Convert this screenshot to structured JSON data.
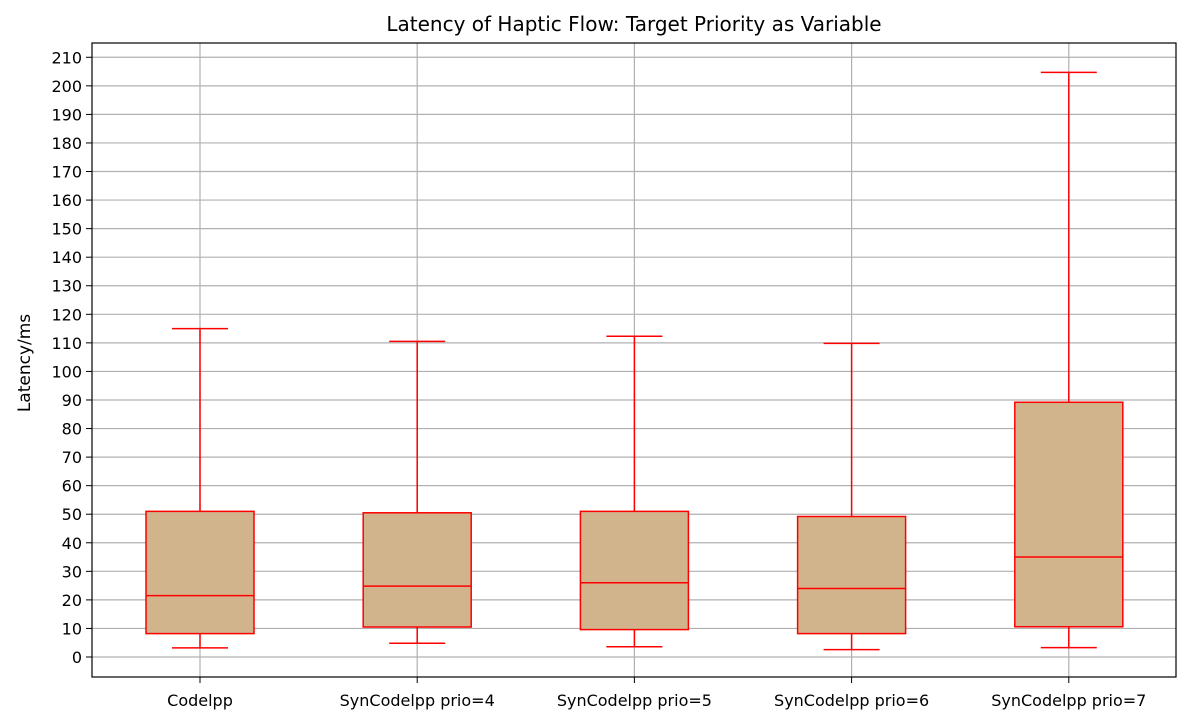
{
  "chart_data": {
    "type": "box",
    "title": "Latency of Haptic Flow: Target Priority as Variable",
    "xlabel": "",
    "ylabel": "Latency/ms",
    "ylim": [
      -7,
      215
    ],
    "yticks": [
      0,
      10,
      20,
      30,
      40,
      50,
      60,
      70,
      80,
      90,
      100,
      110,
      120,
      130,
      140,
      150,
      160,
      170,
      180,
      190,
      200,
      210
    ],
    "grid": true,
    "colors": {
      "box_fill": "#d2b48c",
      "box_edge": "#ff0000",
      "grid": "#b0b0b0"
    },
    "categories": [
      "Codelpp",
      "SynCodelpp prio=4",
      "SynCodelpp prio=5",
      "SynCodelpp prio=6",
      "SynCodelpp prio=7"
    ],
    "boxes": [
      {
        "whisker_low": 3.2,
        "q1": 8.2,
        "median": 21.5,
        "q3": 51.0,
        "whisker_high": 115.0
      },
      {
        "whisker_low": 4.8,
        "q1": 10.5,
        "median": 24.8,
        "q3": 50.5,
        "whisker_high": 110.5
      },
      {
        "whisker_low": 3.6,
        "q1": 9.6,
        "median": 26.0,
        "q3": 51.0,
        "whisker_high": 112.3
      },
      {
        "whisker_low": 2.6,
        "q1": 8.2,
        "median": 24.0,
        "q3": 49.2,
        "whisker_high": 109.8
      },
      {
        "whisker_low": 3.3,
        "q1": 10.6,
        "median": 35.0,
        "q3": 89.2,
        "whisker_high": 204.7
      }
    ]
  }
}
